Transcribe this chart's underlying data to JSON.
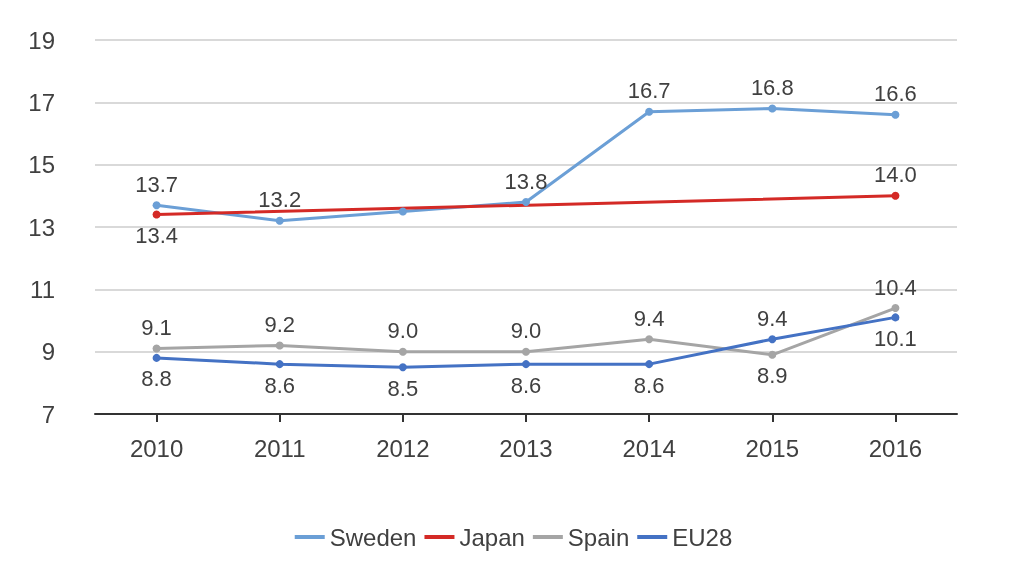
{
  "chart_data": {
    "type": "line",
    "categories": [
      "2010",
      "2011",
      "2012",
      "2013",
      "2014",
      "2015",
      "2016"
    ],
    "series": [
      {
        "name": "Sweden",
        "color": "#6b9fd6",
        "values": [
          13.7,
          13.2,
          13.5,
          13.8,
          16.7,
          16.8,
          16.6
        ],
        "value_labels": [
          "13.7",
          "13.2",
          null,
          "13.8",
          "16.7",
          "16.8",
          "16.6"
        ]
      },
      {
        "name": "Japan",
        "color": "#d42a26",
        "values": [
          13.4,
          null,
          null,
          null,
          null,
          null,
          14.0
        ],
        "value_labels": [
          "13.4",
          null,
          null,
          null,
          null,
          null,
          "14.0"
        ]
      },
      {
        "name": "Spain",
        "color": "#a5a5a5",
        "values": [
          9.1,
          9.2,
          9.0,
          9.0,
          9.4,
          8.9,
          10.4
        ],
        "value_labels": [
          "9.1",
          "9.2",
          "9.0",
          "9.0",
          "9.4",
          "8.9",
          "10.4"
        ]
      },
      {
        "name": "EU28",
        "color": "#4472c4",
        "values": [
          8.8,
          8.6,
          8.5,
          8.6,
          8.6,
          9.4,
          10.1
        ],
        "value_labels": [
          "8.8",
          "8.6",
          "8.5",
          "8.6",
          "8.6",
          "9.4",
          "10.1"
        ]
      }
    ],
    "ylim": [
      7,
      19
    ],
    "yticks": [
      7,
      9,
      11,
      13,
      15,
      17,
      19
    ],
    "grid": "y",
    "legend": "bottom",
    "marker": "circle",
    "line_style": "solid"
  }
}
